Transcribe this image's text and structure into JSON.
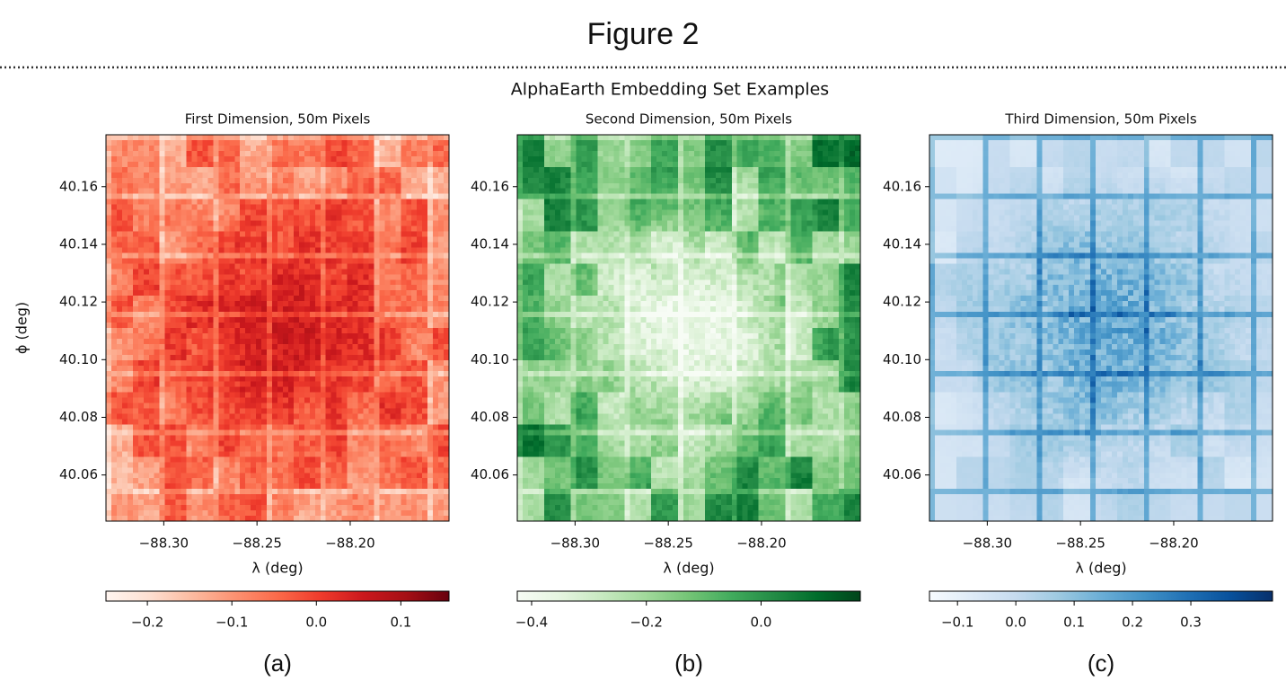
{
  "header": {
    "title": "Figure 2"
  },
  "suptitle": "AlphaEarth Embedding Set Examples",
  "chart_data": [
    {
      "type": "image",
      "title": "First Dimension, 50m Pixels",
      "xlabel": "λ (deg)",
      "ylabel": "ϕ (deg)",
      "caption": "(a)",
      "xlim": [
        -88.331,
        -88.147
      ],
      "ylim": [
        40.044,
        40.178
      ],
      "xticks": [
        {
          "value": -88.3,
          "label": "−88.30"
        },
        {
          "value": -88.25,
          "label": "−88.25"
        },
        {
          "value": -88.2,
          "label": "−88.20"
        }
      ],
      "yticks": [
        40.06,
        40.08,
        {
          "value": 40.1,
          "label": "40.10"
        },
        40.12,
        40.14,
        40.16
      ],
      "clim": [
        -0.249,
        0.157
      ],
      "cticks": [
        {
          "value": -0.2,
          "label": "−0.2"
        },
        {
          "value": -0.1,
          "label": "−0.1"
        },
        {
          "value": 0,
          "label": "0.0"
        },
        0.1
      ],
      "colormap": [
        "#fff5f0",
        "#fee0d2",
        "#fcbba1",
        "#fc9272",
        "#fb6a4a",
        "#ef3b2c",
        "#cb181d",
        "#a50f15",
        "#67000d"
      ]
    },
    {
      "type": "image",
      "title": "Second Dimension, 50m Pixels",
      "xlabel": "λ (deg)",
      "caption": "(b)",
      "xlim": [
        -88.331,
        -88.147
      ],
      "ylim": [
        40.044,
        40.178
      ],
      "xticks": [
        {
          "value": -88.3,
          "label": "−88.30"
        },
        {
          "value": -88.25,
          "label": "−88.25"
        },
        {
          "value": -88.2,
          "label": "−88.20"
        }
      ],
      "yticks": [
        40.06,
        40.08,
        {
          "value": 40.1,
          "label": "40.10"
        },
        40.12,
        40.14,
        40.16
      ],
      "clim": [
        -0.425,
        0.173
      ],
      "cticks": [
        {
          "value": -0.4,
          "label": "−0.4"
        },
        {
          "value": -0.2,
          "label": "−0.2"
        },
        {
          "value": 0,
          "label": "0.0"
        }
      ],
      "colormap": [
        "#f7fcf5",
        "#e5f5e0",
        "#c7e9c0",
        "#a1d99b",
        "#74c476",
        "#41ab5d",
        "#238b45",
        "#006d2c",
        "#00441b"
      ]
    },
    {
      "type": "image",
      "title": "Third Dimension, 50m Pixels",
      "xlabel": "λ (deg)",
      "caption": "(c)",
      "xlim": [
        -88.331,
        -88.147
      ],
      "ylim": [
        40.044,
        40.178
      ],
      "xticks": [
        {
          "value": -88.3,
          "label": "−88.30"
        },
        {
          "value": -88.25,
          "label": "−88.25"
        },
        {
          "value": -88.2,
          "label": "−88.20"
        }
      ],
      "yticks": [
        40.06,
        40.08,
        {
          "value": 40.1,
          "label": "40.10"
        },
        40.12,
        40.14,
        40.16
      ],
      "clim": [
        -0.148,
        0.44
      ],
      "cticks": [
        {
          "value": -0.1,
          "label": "−0.1"
        },
        {
          "value": 0,
          "label": "0.0"
        },
        0.1,
        0.2,
        0.3
      ],
      "colormap": [
        "#f7fbff",
        "#deebf7",
        "#c6dbef",
        "#9ecae1",
        "#6baed6",
        "#4292c6",
        "#2171b5",
        "#08519c",
        "#08306b"
      ]
    }
  ]
}
